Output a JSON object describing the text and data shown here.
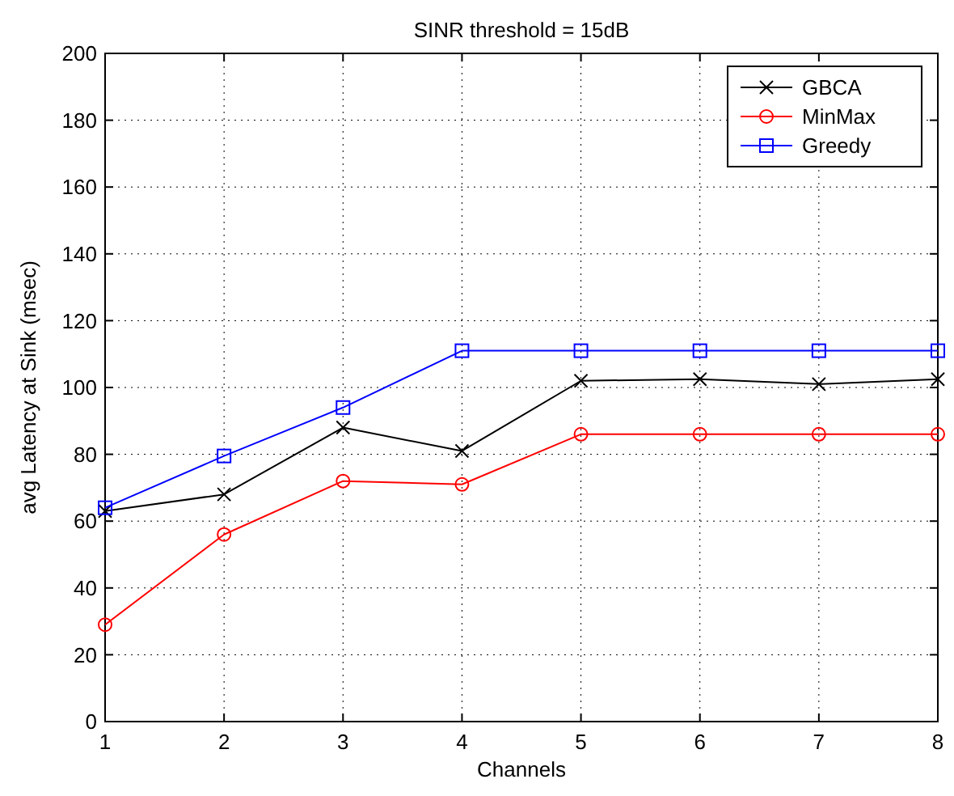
{
  "chart_data": {
    "type": "line",
    "title": "SINR threshold = 15dB",
    "xlabel": "Channels",
    "ylabel": "avg Latency at Sink (msec)",
    "x": [
      1,
      2,
      3,
      4,
      5,
      6,
      7,
      8
    ],
    "series": [
      {
        "name": "GBCA",
        "color": "#000000",
        "marker": "cross",
        "values": [
          63,
          68,
          88,
          81,
          102,
          102.5,
          101,
          102.5
        ]
      },
      {
        "name": "MinMax",
        "color": "#ff0000",
        "marker": "circle",
        "values": [
          29,
          56,
          72,
          71,
          86,
          86,
          86,
          86
        ]
      },
      {
        "name": "Greedy",
        "color": "#0000ff",
        "marker": "square",
        "values": [
          64,
          79.5,
          94,
          111,
          111,
          111,
          111,
          111
        ]
      }
    ],
    "xlim": [
      1,
      8
    ],
    "xticks": [
      1,
      2,
      3,
      4,
      5,
      6,
      7,
      8
    ],
    "ylim": [
      0,
      200
    ],
    "yticks": [
      0,
      20,
      40,
      60,
      80,
      100,
      120,
      140,
      160,
      180,
      200
    ],
    "grid": true,
    "legend": "top right",
    "line_style": "solid"
  }
}
